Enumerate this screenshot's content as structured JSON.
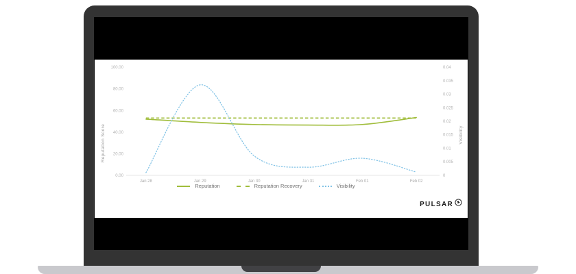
{
  "device": {
    "type": "laptop-mockup",
    "frame_color": "#333333",
    "screen_color": "#000000",
    "base_color": "#c9c9cd",
    "hinge_color": "#414144"
  },
  "branding": {
    "logo_text": "PULSAR",
    "logo_icon": "pulsar-circle-icon"
  },
  "chart_data": {
    "type": "line",
    "title": "",
    "categories": [
      "Jan 28",
      "Jan 29",
      "Jan 30",
      "Jan 31",
      "Feb 01",
      "Feb 02"
    ],
    "series": [
      {
        "name": "Reputation",
        "axis": "left",
        "style": "solid",
        "color": "#a0bd3b",
        "values": [
          52,
          49,
          47,
          46.5,
          47,
          53.5
        ]
      },
      {
        "name": "Reputation Recovery",
        "axis": "left",
        "style": "dashed",
        "color": "#a0bd3b",
        "values": [
          53,
          53,
          53,
          53,
          53,
          53
        ]
      },
      {
        "name": "Visibility",
        "axis": "right",
        "style": "dotted",
        "color": "#82c3e6",
        "values": [
          0.001,
          0.0335,
          0.0072,
          0.003,
          0.0063,
          0.0012
        ]
      }
    ],
    "left_axis": {
      "label": "Reputation Score",
      "range": [
        0,
        100
      ],
      "ticks": [
        "100.00",
        "80.00",
        "60.00",
        "40.00",
        "20.00",
        "0.00"
      ]
    },
    "right_axis": {
      "label": "Visibility",
      "range": [
        0,
        0.04
      ],
      "ticks": [
        "0.04",
        "0.035",
        "0.03",
        "0.025",
        "0.02",
        "0.015",
        "0.01",
        "0.005",
        "0"
      ]
    },
    "grid": false,
    "legend_position": "bottom"
  }
}
